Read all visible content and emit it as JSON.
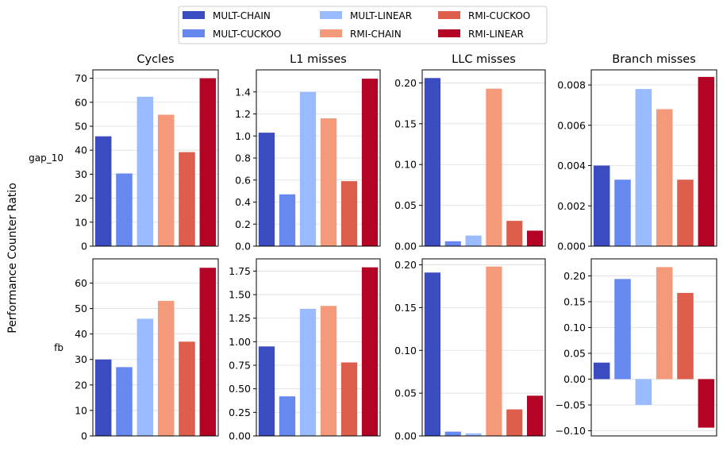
{
  "ylabel": "Performance Counter Ratio",
  "legend": {
    "placement": "top-center",
    "entries": [
      {
        "name": "MULT-CHAIN",
        "color": "#3b4cc0"
      },
      {
        "name": "MULT-CUCKOO",
        "color": "#6788ee"
      },
      {
        "name": "MULT-LINEAR",
        "color": "#9abbff"
      },
      {
        "name": "RMI-CHAIN",
        "color": "#f49a7b"
      },
      {
        "name": "RMI-CUCKOO",
        "color": "#dd5f4b"
      },
      {
        "name": "RMI-LINEAR",
        "color": "#b40426"
      }
    ]
  },
  "rows": [
    "gap_10",
    "fb"
  ],
  "columns": [
    "Cycles",
    "L1 misses",
    "LLC misses",
    "Branch misses"
  ],
  "chart_data": [
    {
      "type": "bar",
      "row": "gap_10",
      "title": "Cycles",
      "series": [
        "MULT-CHAIN",
        "MULT-CUCKOO",
        "MULT-LINEAR",
        "RMI-CHAIN",
        "RMI-CUCKOO",
        "RMI-LINEAR"
      ],
      "values": [
        45.8,
        30.3,
        62.3,
        54.8,
        39.2,
        70.0
      ],
      "ylim": [
        0,
        73.5
      ],
      "yticks": [
        0,
        10,
        20,
        30,
        40,
        50,
        60,
        70
      ],
      "ytick_labels": [
        "0",
        "10",
        "20",
        "30",
        "40",
        "50",
        "60",
        "70"
      ],
      "grid": true
    },
    {
      "type": "bar",
      "row": "gap_10",
      "title": "L1 misses",
      "series": [
        "MULT-CHAIN",
        "MULT-CUCKOO",
        "MULT-LINEAR",
        "RMI-CHAIN",
        "RMI-CUCKOO",
        "RMI-LINEAR"
      ],
      "values": [
        1.03,
        0.47,
        1.4,
        1.16,
        0.59,
        1.52
      ],
      "ylim": [
        0,
        1.6
      ],
      "yticks": [
        0,
        0.2,
        0.4,
        0.6,
        0.8,
        1.0,
        1.2,
        1.4
      ],
      "ytick_labels": [
        "0.0",
        "0.2",
        "0.4",
        "0.6",
        "0.8",
        "1.0",
        "1.2",
        "1.4"
      ],
      "grid": true
    },
    {
      "type": "bar",
      "row": "gap_10",
      "title": "LLC misses",
      "series": [
        "MULT-CHAIN",
        "MULT-CUCKOO",
        "MULT-LINEAR",
        "RMI-CHAIN",
        "RMI-CUCKOO",
        "RMI-LINEAR"
      ],
      "values": [
        0.206,
        0.006,
        0.013,
        0.193,
        0.031,
        0.019
      ],
      "ylim": [
        0,
        0.216
      ],
      "yticks": [
        0,
        0.05,
        0.1,
        0.15,
        0.2
      ],
      "ytick_labels": [
        "0.00",
        "0.05",
        "0.10",
        "0.15",
        "0.20"
      ],
      "grid": true
    },
    {
      "type": "bar",
      "row": "gap_10",
      "title": "Branch misses",
      "series": [
        "MULT-CHAIN",
        "MULT-CUCKOO",
        "MULT-LINEAR",
        "RMI-CHAIN",
        "RMI-CUCKOO",
        "RMI-LINEAR"
      ],
      "values": [
        0.004,
        0.0033,
        0.0078,
        0.0068,
        0.0033,
        0.0084
      ],
      "ylim": [
        0,
        0.00875
      ],
      "yticks": [
        0,
        0.002,
        0.004,
        0.006,
        0.008
      ],
      "ytick_labels": [
        "0.000",
        "0.002",
        "0.004",
        "0.006",
        "0.008"
      ],
      "grid": true
    },
    {
      "type": "bar",
      "row": "fb",
      "title": "",
      "series": [
        "MULT-CHAIN",
        "MULT-CUCKOO",
        "MULT-LINEAR",
        "RMI-CHAIN",
        "RMI-CUCKOO",
        "RMI-LINEAR"
      ],
      "values": [
        30.0,
        27.0,
        46.0,
        53.0,
        37.0,
        66.0
      ],
      "ylim": [
        0,
        69.5
      ],
      "yticks": [
        0,
        10,
        20,
        30,
        40,
        50,
        60
      ],
      "ytick_labels": [
        "0",
        "10",
        "20",
        "30",
        "40",
        "50",
        "60"
      ],
      "grid": true
    },
    {
      "type": "bar",
      "row": "fb",
      "title": "",
      "series": [
        "MULT-CHAIN",
        "MULT-CUCKOO",
        "MULT-LINEAR",
        "RMI-CHAIN",
        "RMI-CUCKOO",
        "RMI-LINEAR"
      ],
      "values": [
        0.95,
        0.42,
        1.35,
        1.38,
        0.78,
        1.79
      ],
      "ylim": [
        0,
        1.88
      ],
      "yticks": [
        0,
        0.25,
        0.5,
        0.75,
        1.0,
        1.25,
        1.5,
        1.75
      ],
      "ytick_labels": [
        "0.00",
        "0.25",
        "0.50",
        "0.75",
        "1.00",
        "1.25",
        "1.50",
        "1.75"
      ],
      "grid": true
    },
    {
      "type": "bar",
      "row": "fb",
      "title": "",
      "series": [
        "MULT-CHAIN",
        "MULT-CUCKOO",
        "MULT-LINEAR",
        "RMI-CHAIN",
        "RMI-CUCKOO",
        "RMI-LINEAR"
      ],
      "values": [
        0.191,
        0.005,
        0.003,
        0.198,
        0.031,
        0.047
      ],
      "ylim": [
        0,
        0.207
      ],
      "yticks": [
        0,
        0.05,
        0.1,
        0.15,
        0.2
      ],
      "ytick_labels": [
        "0.00",
        "0.05",
        "0.10",
        "0.15",
        "0.20"
      ],
      "grid": true
    },
    {
      "type": "bar",
      "row": "fb",
      "title": "",
      "series": [
        "MULT-CHAIN",
        "MULT-CUCKOO",
        "MULT-LINEAR",
        "RMI-CHAIN",
        "RMI-CUCKOO",
        "RMI-LINEAR"
      ],
      "values": [
        0.032,
        0.194,
        -0.05,
        0.217,
        0.167,
        -0.094
      ],
      "ylim": [
        -0.11,
        0.233
      ],
      "yticks": [
        -0.1,
        -0.05,
        0,
        0.05,
        0.1,
        0.15,
        0.2
      ],
      "ytick_labels": [
        "−0.10",
        "−0.05",
        "0.00",
        "0.05",
        "0.10",
        "0.15",
        "0.20"
      ],
      "grid": true
    }
  ]
}
